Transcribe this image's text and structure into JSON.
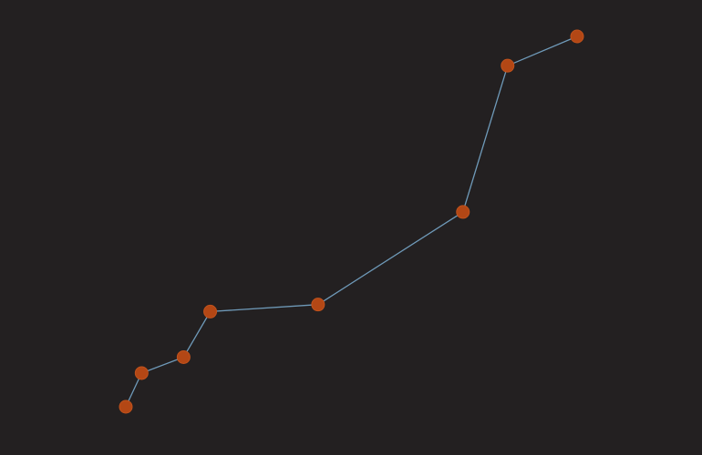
{
  "chart_data": {
    "type": "scatter",
    "connected": true,
    "axes_visible": false,
    "grid": false,
    "legend": "none",
    "xlim": [
      0,
      100
    ],
    "ylim": [
      0,
      100
    ],
    "series": [
      {
        "points": [
          {
            "x": 0,
            "y": 0
          },
          {
            "x": 3.5,
            "y": 9.1
          },
          {
            "x": 12.8,
            "y": 13.4
          },
          {
            "x": 18.7,
            "y": 25.7
          },
          {
            "x": 42.6,
            "y": 27.6
          },
          {
            "x": 74.7,
            "y": 52.6
          },
          {
            "x": 84.6,
            "y": 92.1
          },
          {
            "x": 100,
            "y": 100
          }
        ]
      }
    ],
    "colors": {
      "background": "#232021",
      "line": "#6f9ab9",
      "point_fill": "#b34715",
      "point_stroke": "#c1521c"
    }
  }
}
